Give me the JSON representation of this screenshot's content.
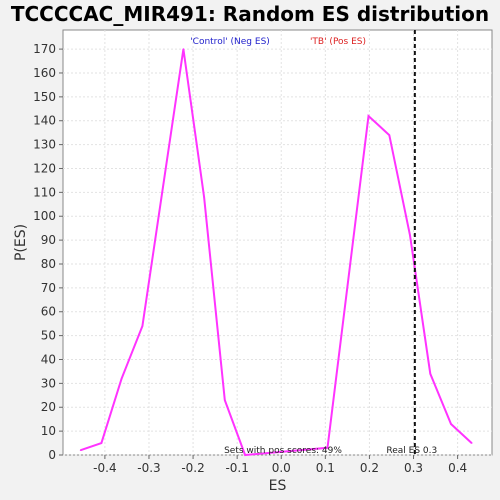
{
  "chart_data": {
    "type": "line",
    "title": "TCCCCAC_MIR491: Random ES distribution",
    "xlabel": "ES",
    "ylabel": "P(ES)",
    "xlim": [
      -0.495,
      0.478
    ],
    "ylim": [
      0,
      178
    ],
    "x_ticks": [
      -0.4,
      -0.3,
      -0.2,
      -0.1,
      0.0,
      0.1,
      0.2,
      0.3,
      0.4
    ],
    "x_tick_labels": [
      "-0.4",
      "-0.3",
      "-0.2",
      "-0.1",
      "0.0",
      "0.1",
      "0.2",
      "0.3",
      "0.4"
    ],
    "y_ticks": [
      0,
      10,
      20,
      30,
      40,
      50,
      60,
      70,
      80,
      90,
      100,
      110,
      120,
      130,
      140,
      150,
      160,
      170
    ],
    "y_tick_labels": [
      "0",
      "10",
      "20",
      "30",
      "40",
      "50",
      "60",
      "70",
      "80",
      "90",
      "100",
      "110",
      "120",
      "130",
      "140",
      "150",
      "160",
      "170"
    ],
    "grid": true,
    "series": [
      {
        "color": "#ff33ff",
        "x": [
          -0.455,
          -0.408,
          -0.362,
          -0.315,
          -0.222,
          -0.175,
          -0.128,
          -0.082,
          0.105,
          0.198,
          0.245,
          0.292,
          0.338,
          0.385,
          0.432
        ],
        "y": [
          2,
          5,
          32,
          54,
          170,
          108,
          23,
          0,
          3,
          142,
          134,
          92,
          34,
          13,
          5
        ]
      }
    ],
    "reference_line": {
      "x": 0.303,
      "label": "Real ES 0.3"
    },
    "legend": [
      {
        "label": "'Control' (Neg ES)",
        "color": "#2222cc"
      },
      {
        "label": "'TB' (Pos ES)",
        "color": "#dd2222"
      }
    ],
    "annotation": "Sets with pos scores: 49%"
  }
}
